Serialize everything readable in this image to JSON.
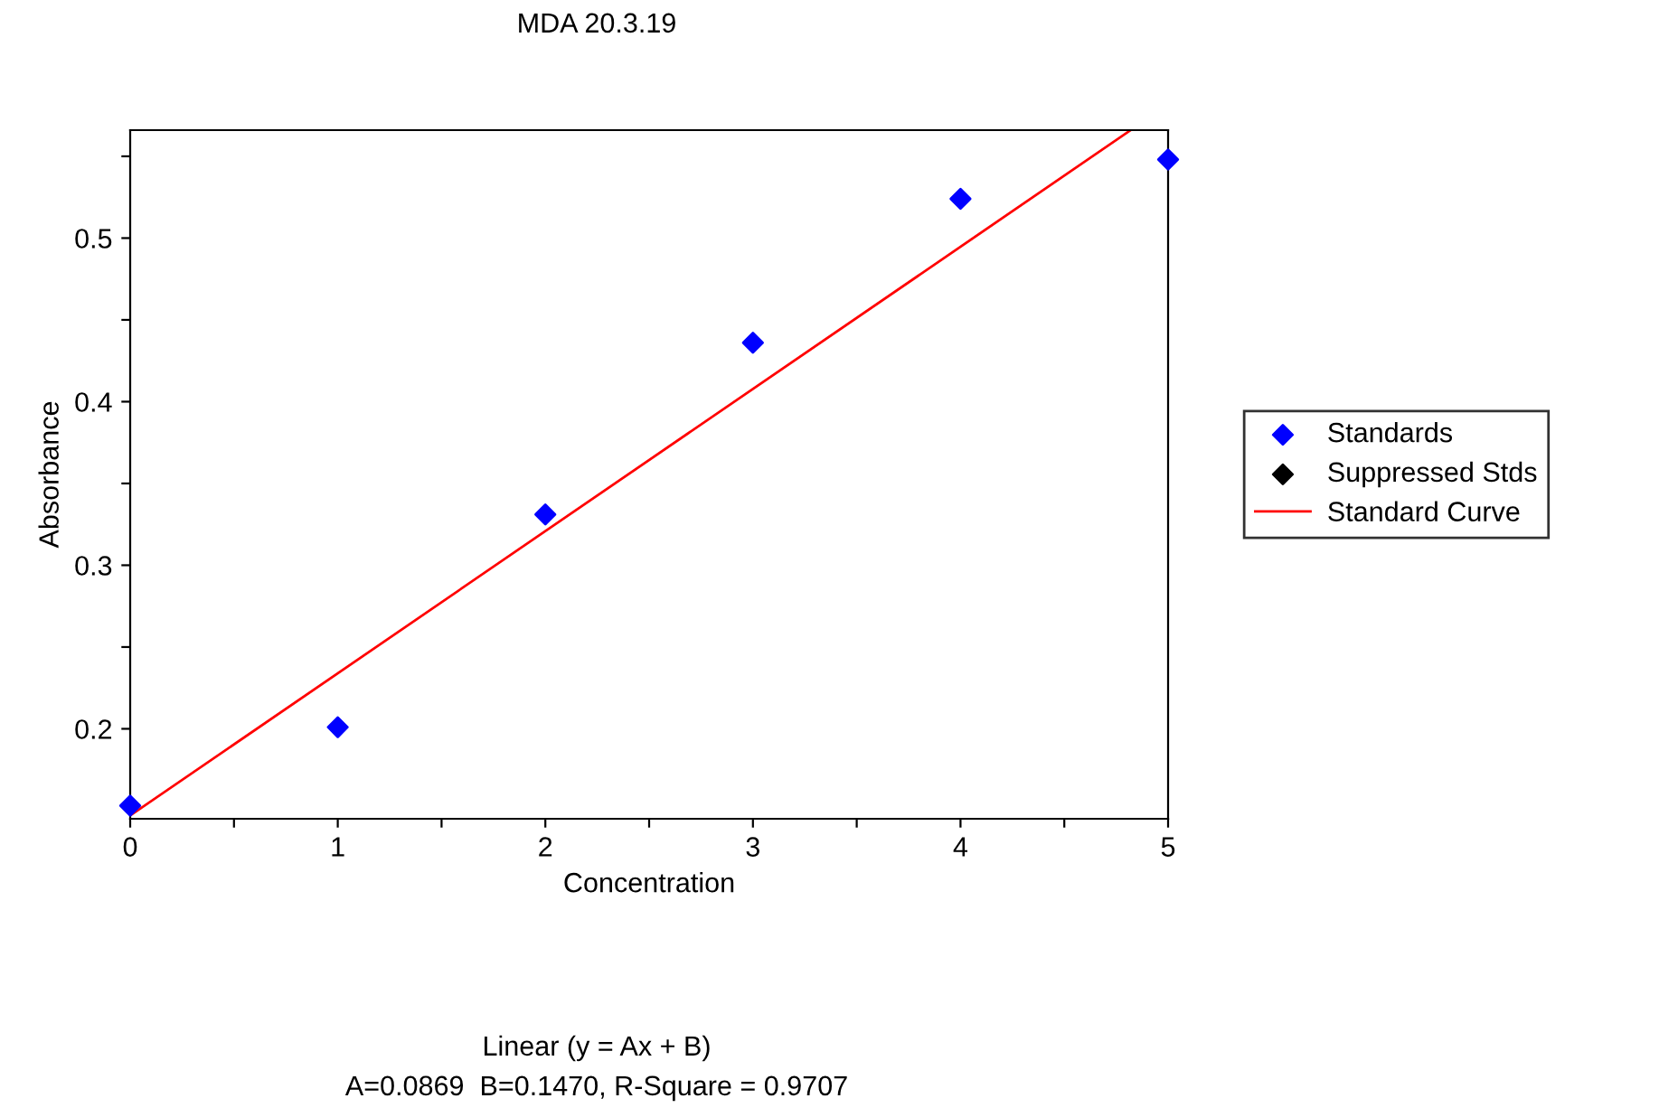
{
  "chart_data": {
    "type": "scatter",
    "title": "MDA 20.3.19",
    "xlabel": "Concentration",
    "ylabel": "Absorbance",
    "xlim": [
      0,
      5
    ],
    "ylim": [
      0.145,
      0.566
    ],
    "xticks": [
      0,
      {
        "value": 0.5,
        "label": null
      },
      1,
      {
        "value": 1.5,
        "label": null
      },
      2,
      {
        "value": 2.5,
        "label": null
      },
      3,
      {
        "value": 3.5,
        "label": null
      },
      4,
      {
        "value": 4.5,
        "label": null
      },
      5
    ],
    "yticks": [
      {
        "value": 0.2,
        "label": "0.2"
      },
      {
        "value": 0.25,
        "label": null
      },
      {
        "value": 0.3,
        "label": "0.3"
      },
      {
        "value": 0.35,
        "label": null
      },
      {
        "value": 0.4,
        "label": "0.4"
      },
      {
        "value": 0.45,
        "label": null
      },
      {
        "value": 0.5,
        "label": "0.5"
      },
      {
        "value": 0.55,
        "label": null
      }
    ],
    "series": [
      {
        "name": "Standards",
        "color": "#0000ff",
        "marker": "diamond",
        "x": [
          0,
          1,
          2,
          3,
          4,
          5
        ],
        "values": [
          0.153,
          0.201,
          0.331,
          0.436,
          0.524,
          0.548
        ]
      },
      {
        "name": "Suppressed Stds",
        "color": "#000000",
        "marker": "diamond"
      },
      {
        "name": "Standard Curve",
        "type": "line",
        "color": "#ff0000",
        "marker": "none",
        "line_style": "solid",
        "x": [
          0,
          4.82
        ],
        "values": [
          0.147,
          0.566
        ]
      }
    ],
    "legend": "right",
    "grid": false,
    "annotations": [
      "Linear (y = Ax + B)",
      "A=0.0869  B=0.1470, R-Square = 0.9707"
    ]
  }
}
